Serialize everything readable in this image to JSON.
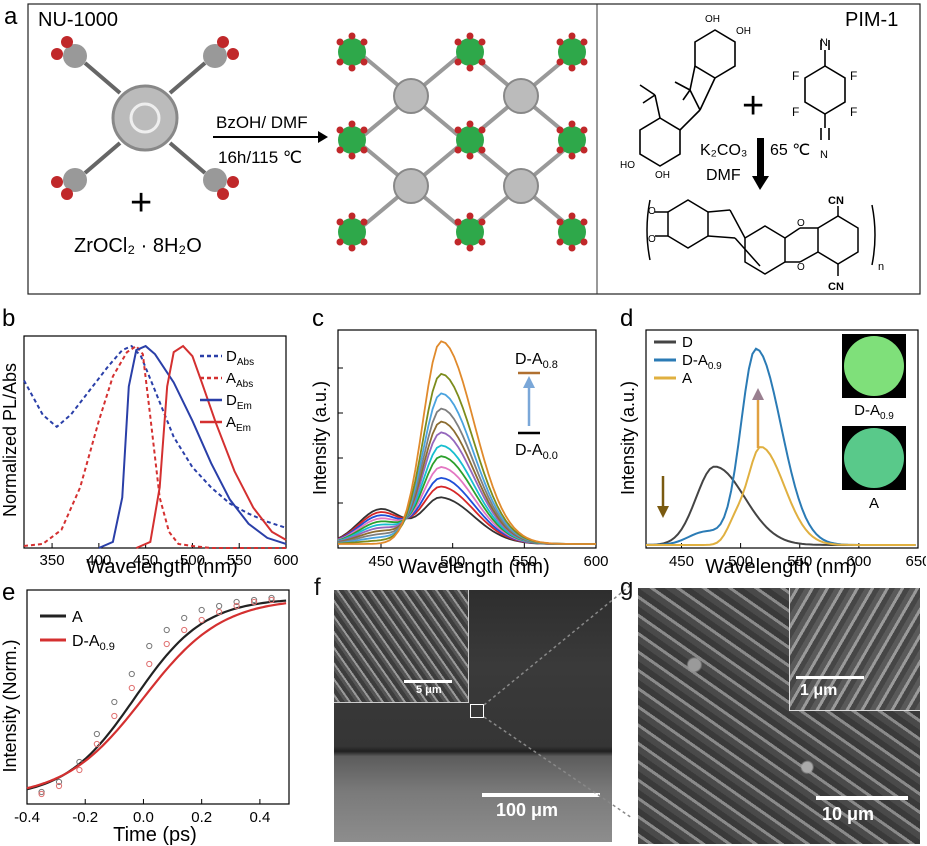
{
  "panel_a": {
    "letter": "a",
    "left_title": "NU-1000",
    "right_title": "PIM-1",
    "left_reagent": "ZrOCl₂ · 8H₂O",
    "arrow_top": "BzOH/ DMF",
    "arrow_bottom": "16h/115 ℃",
    "pim_conditions_1": "K₂CO₃",
    "pim_conditions_2": "DMF",
    "pim_temp": "65 ℃",
    "atoms": {
      "oh": "OH",
      "ho": "HO",
      "f": "F",
      "n": "N",
      "cn": "CN",
      "o": "O",
      "n_sub": "n"
    }
  },
  "panel_b": {
    "letter": "b",
    "chart_data": {
      "type": "line",
      "ylabel": "Normalized PL/Abs",
      "xlabel": "Wavelength (nm)",
      "xlim": [
        320,
        600
      ],
      "ylim": [
        0,
        1.05
      ],
      "xticks": [
        "350",
        "400",
        "450",
        "500",
        "550",
        "600"
      ],
      "legend_position": "top-right",
      "series": [
        {
          "name": "D_Abs",
          "label_main": "D",
          "label_sub": "Abs",
          "color": "#2a3fa8",
          "style": "dashed",
          "x": [
            320,
            340,
            355,
            370,
            390,
            410,
            425,
            435,
            445,
            460,
            480,
            500,
            520,
            540,
            560,
            580,
            600
          ],
          "y": [
            0.83,
            0.66,
            0.6,
            0.66,
            0.78,
            0.9,
            0.98,
            1.0,
            0.95,
            0.78,
            0.55,
            0.4,
            0.3,
            0.22,
            0.17,
            0.13,
            0.1
          ]
        },
        {
          "name": "A_Abs",
          "label_main": "A",
          "label_sub": "Abs",
          "color": "#d43030",
          "style": "dashed",
          "x": [
            320,
            340,
            360,
            380,
            400,
            415,
            430,
            440,
            447,
            455,
            465,
            475,
            485,
            500,
            520,
            560,
            600
          ],
          "y": [
            0.01,
            0.02,
            0.09,
            0.3,
            0.63,
            0.85,
            0.97,
            1.0,
            0.96,
            0.65,
            0.25,
            0.08,
            0.02,
            0.01,
            0.0,
            0.0,
            0.0
          ]
        },
        {
          "name": "D_Em",
          "label_main": "D",
          "label_sub": "Em",
          "color": "#2a3fa8",
          "style": "solid",
          "x": [
            400,
            415,
            425,
            432,
            440,
            450,
            460,
            480,
            500,
            520,
            540,
            560,
            580,
            600
          ],
          "y": [
            0.0,
            0.03,
            0.25,
            0.8,
            0.98,
            1.0,
            0.96,
            0.82,
            0.63,
            0.42,
            0.24,
            0.12,
            0.05,
            0.02
          ]
        },
        {
          "name": "A_Em",
          "label_main": "A",
          "label_sub": "Em",
          "color": "#d43030",
          "style": "solid",
          "x": [
            440,
            455,
            465,
            473,
            480,
            490,
            500,
            510,
            525,
            545,
            565,
            585,
            600
          ],
          "y": [
            0.0,
            0.03,
            0.3,
            0.8,
            0.97,
            1.0,
            0.95,
            0.82,
            0.62,
            0.38,
            0.2,
            0.08,
            0.04
          ]
        }
      ]
    }
  },
  "panel_c": {
    "letter": "c",
    "chart_data": {
      "type": "line",
      "ylabel": "Intensity (a.u.)",
      "xlabel": "Wavelength (nm)",
      "xlim": [
        420,
        600
      ],
      "xticks": [
        "450",
        "500",
        "550",
        "600"
      ],
      "annotation_top": "D-A",
      "annotation_top_sub": "0.8",
      "annotation_bottom": "D-A",
      "annotation_bottom_sub": "0.0",
      "peak_heights": [
        0.21,
        0.26,
        0.3,
        0.35,
        0.4,
        0.45,
        0.51,
        0.56,
        0.62,
        0.69,
        0.78,
        0.93
      ],
      "colors": [
        "#333333",
        "#d62728",
        "#1f4fd8",
        "#e377c2",
        "#2ca02c",
        "#17becf",
        "#9467bd",
        "#8c6d31",
        "#7f7f7f",
        "#4aa3df",
        "#7c8c1c",
        "#e08a2c"
      ]
    }
  },
  "panel_d": {
    "letter": "d",
    "chart_data": {
      "type": "line",
      "ylabel": "Intensity (a.u.)",
      "xlabel": "Wavelength (nm)",
      "xlim": [
        420,
        650
      ],
      "xticks": [
        "450",
        "500",
        "550",
        "600",
        "650"
      ],
      "legend_position": "top-left",
      "series": [
        {
          "name": "D",
          "label_main": "D",
          "label_sub": "",
          "color": "#444444"
        },
        {
          "name": "D-A0.9",
          "label_main": "D-A",
          "label_sub": "0.9",
          "color": "#2b7bb5"
        },
        {
          "name": "A",
          "label_main": "A",
          "label_sub": "",
          "color": "#e0b040"
        }
      ],
      "photo_labels": [
        "D-A",
        "A"
      ],
      "photo_label_sub": "0.9"
    }
  },
  "panel_e": {
    "letter": "e",
    "chart_data": {
      "type": "scatter",
      "ylabel": "Intensity (Norm.)",
      "xlabel": "Time (ps)",
      "xlim": [
        -0.4,
        0.5
      ],
      "ylim": [
        0,
        1.0
      ],
      "xticks": [
        "-0.4",
        "-0.2",
        "0.0",
        "0.2",
        "0.4"
      ],
      "legend_position": "top-left",
      "series": [
        {
          "name": "A",
          "label_main": "A",
          "label_sub": "",
          "color": "#222222",
          "points_x": [
            -0.35,
            -0.29,
            -0.22,
            -0.16,
            -0.1,
            -0.04,
            0.02,
            0.08,
            0.14,
            0.2,
            0.26,
            0.32,
            0.38,
            0.44
          ],
          "points_y": [
            0.03,
            0.08,
            0.18,
            0.32,
            0.48,
            0.62,
            0.76,
            0.84,
            0.9,
            0.94,
            0.96,
            0.98,
            0.99,
            1.0
          ]
        },
        {
          "name": "D-A0.9",
          "label_main": "D-A",
          "label_sub": "0.9",
          "color": "#d43030",
          "points_x": [
            -0.35,
            -0.29,
            -0.22,
            -0.16,
            -0.1,
            -0.04,
            0.02,
            0.08,
            0.14,
            0.2,
            0.26,
            0.32,
            0.38,
            0.44
          ],
          "points_y": [
            0.02,
            0.06,
            0.14,
            0.27,
            0.41,
            0.55,
            0.67,
            0.77,
            0.84,
            0.89,
            0.93,
            0.96,
            0.98,
            0.99
          ]
        }
      ]
    }
  },
  "panel_f": {
    "letter": "f",
    "inset_scale": "5 μm",
    "scale": "100 μm"
  },
  "panel_g": {
    "letter": "g",
    "inset_scale": "1 μm",
    "scale": "10 μm"
  }
}
